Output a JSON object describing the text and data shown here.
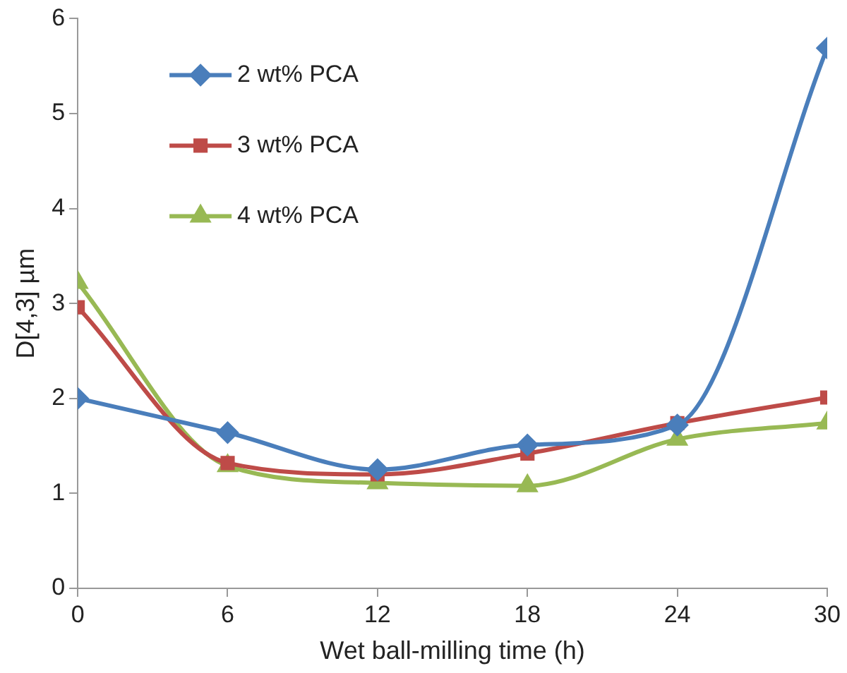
{
  "chart_data": {
    "type": "line",
    "xlabel": "Wet ball-milling time (h)",
    "ylabel": "D[4,3] µm",
    "x": [
      0,
      6,
      12,
      18,
      24,
      30
    ],
    "xlim": [
      0,
      30
    ],
    "xticks": [
      0,
      6,
      12,
      18,
      24,
      30
    ],
    "ylim": [
      0,
      6
    ],
    "yticks": [
      0,
      1,
      2,
      3,
      4,
      5,
      6
    ],
    "grid": false,
    "legend": "top left",
    "series": [
      {
        "name": "2 wt% PCA",
        "color": "#4a7ebb",
        "marker": "diamond",
        "values": [
          2.0,
          1.64,
          1.25,
          1.51,
          1.72,
          5.69
        ]
      },
      {
        "name": "3 wt% PCA",
        "color": "#be4b48",
        "marker": "square",
        "values": [
          2.96,
          1.32,
          1.2,
          1.42,
          1.74,
          2.01
        ]
      },
      {
        "name": "4 wt% PCA",
        "color": "#98b954",
        "marker": "triangle",
        "values": [
          3.22,
          1.29,
          1.11,
          1.08,
          1.57,
          1.74
        ]
      }
    ]
  }
}
